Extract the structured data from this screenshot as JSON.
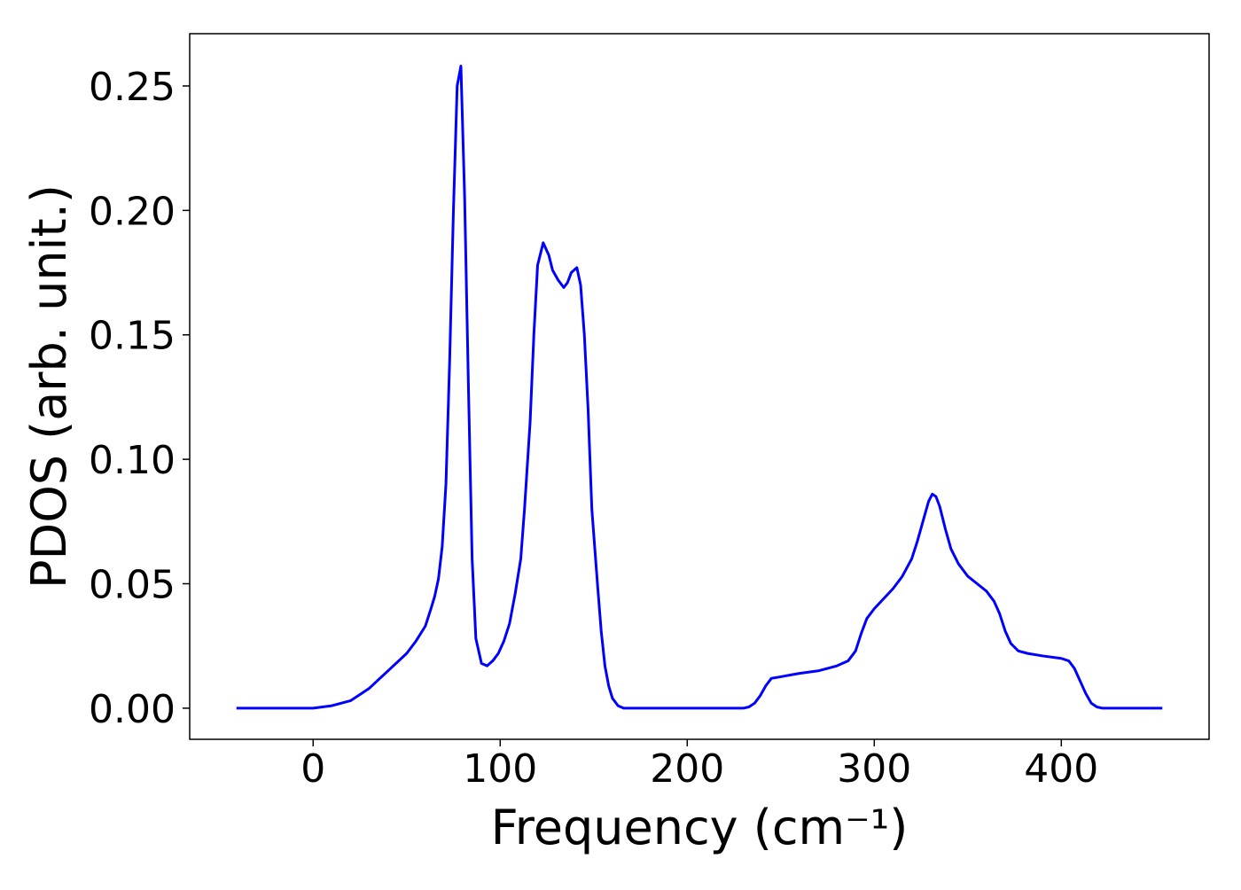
{
  "chart_data": {
    "type": "line",
    "xlabel": "Frequency (cm⁻¹)",
    "ylabel": "PDOS (arb. unit.)",
    "xlim": [
      -66,
      479
    ],
    "ylim": [
      -0.0125,
      0.271
    ],
    "xticks": [
      0,
      100,
      200,
      300,
      400
    ],
    "yticks": [
      {
        "value": 0,
        "label": "0.00"
      },
      {
        "value": 0.05,
        "label": "0.05"
      },
      {
        "value": 0.1,
        "label": "0.10"
      },
      {
        "value": 0.15,
        "label": "0.15"
      },
      {
        "value": 0.2,
        "label": "0.20"
      },
      {
        "value": 0.25,
        "label": "0.25"
      }
    ],
    "series": [
      {
        "color": "#0000ff",
        "x": [
          -41,
          -20,
          0,
          10,
          20,
          30,
          40,
          50,
          55,
          60,
          63,
          65,
          67,
          69,
          71,
          73,
          75,
          77,
          79,
          81,
          83,
          85,
          87,
          90,
          93,
          96,
          99,
          102,
          105,
          108,
          111,
          113,
          116,
          118,
          120,
          123,
          126,
          128,
          131,
          134,
          136,
          138,
          141,
          143,
          145,
          147,
          149,
          152,
          154,
          156,
          158,
          160,
          163,
          166,
          200,
          230,
          233,
          236,
          239,
          242,
          245,
          249,
          260,
          270,
          280,
          286,
          290,
          293,
          296,
          300,
          305,
          310,
          315,
          320,
          323,
          326,
          329,
          331,
          333,
          335,
          338,
          341,
          345,
          350,
          355,
          360,
          364,
          367,
          370,
          373,
          377,
          382,
          390,
          400,
          404,
          407,
          410,
          413,
          416,
          419,
          422,
          454
        ],
        "values": [
          0,
          0,
          0,
          0.001,
          0.003,
          0.008,
          0.015,
          0.022,
          0.027,
          0.033,
          0.04,
          0.045,
          0.052,
          0.065,
          0.09,
          0.14,
          0.2,
          0.25,
          0.258,
          0.205,
          0.13,
          0.06,
          0.028,
          0.018,
          0.017,
          0.019,
          0.022,
          0.027,
          0.034,
          0.046,
          0.06,
          0.08,
          0.115,
          0.15,
          0.178,
          0.187,
          0.182,
          0.176,
          0.172,
          0.169,
          0.171,
          0.175,
          0.177,
          0.17,
          0.15,
          0.12,
          0.08,
          0.05,
          0.031,
          0.017,
          0.009,
          0.004,
          0.001,
          0,
          0,
          0,
          0.0005,
          0.002,
          0.005,
          0.009,
          0.012,
          0.0125,
          0.014,
          0.015,
          0.017,
          0.019,
          0.023,
          0.03,
          0.036,
          0.04,
          0.044,
          0.048,
          0.053,
          0.06,
          0.067,
          0.075,
          0.083,
          0.086,
          0.085,
          0.081,
          0.072,
          0.064,
          0.058,
          0.053,
          0.05,
          0.047,
          0.043,
          0.038,
          0.031,
          0.026,
          0.023,
          0.022,
          0.021,
          0.02,
          0.019,
          0.016,
          0.011,
          0.006,
          0.002,
          0.0005,
          0,
          0
        ]
      }
    ]
  }
}
